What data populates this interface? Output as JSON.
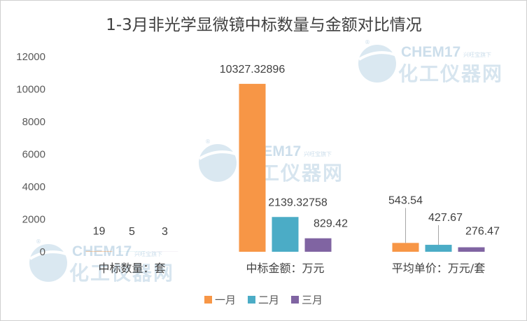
{
  "chart_data": {
    "type": "bar",
    "title": "1-3月非光学显微镜中标数量与金额对比情况",
    "categories": [
      "中标数量：套",
      "中标金额：万元",
      "平均单价：万元/套"
    ],
    "series": [
      {
        "name": "一月",
        "color": "#f79646",
        "values": [
          19,
          10327.32896,
          543.54
        ],
        "labels": [
          "19",
          "10327.32896",
          "543.54"
        ]
      },
      {
        "name": "二月",
        "color": "#4bacc6",
        "values": [
          5,
          2139.32758,
          427.67
        ],
        "labels": [
          "5",
          "2139.32758",
          "427.67"
        ]
      },
      {
        "name": "三月",
        "color": "#8064a2",
        "values": [
          3,
          829.42,
          276.47
        ],
        "labels": [
          "3",
          "829.42",
          "276.47"
        ]
      }
    ],
    "ylim": [
      0,
      12000
    ],
    "yticks": [
      0,
      2000,
      4000,
      6000,
      8000,
      10000,
      12000
    ],
    "grid": false,
    "legend_position": "bottom",
    "xlabel": "",
    "ylabel": ""
  },
  "watermark": {
    "brand": "CHEM17",
    "slogan": "兴旺宝旗下",
    "name_cn": "化工仪器网",
    "registered": "®",
    "icon": "globe-logo-icon"
  }
}
